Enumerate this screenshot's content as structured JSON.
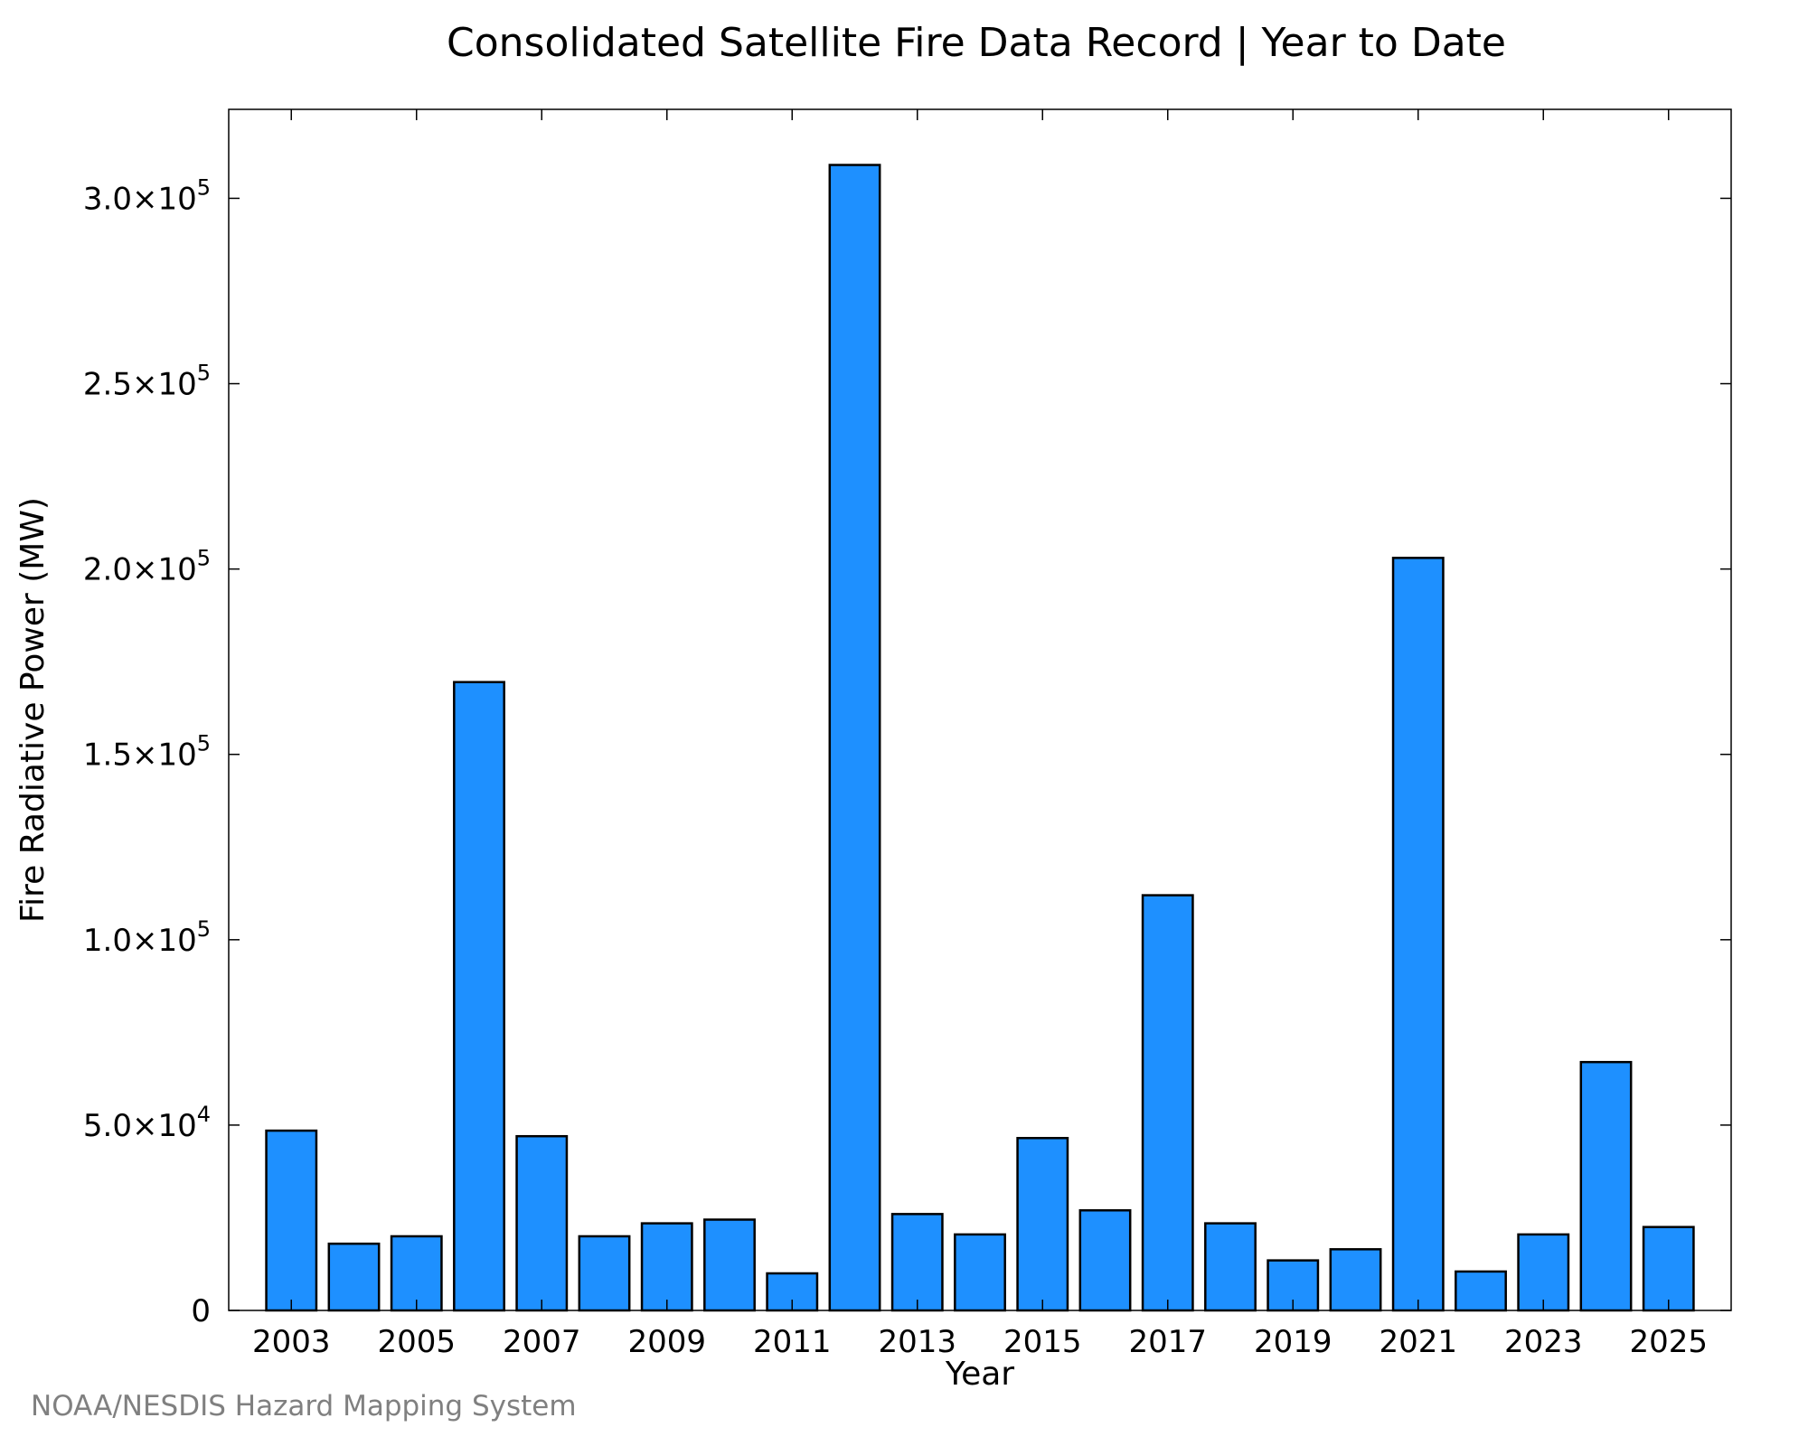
{
  "chart_data": {
    "type": "bar",
    "title": "Consolidated Satellite Fire Data Record | Year to Date",
    "xlabel": "Year",
    "ylabel": "Fire Radiative Power (MW)",
    "ylim": [
      0,
      324000
    ],
    "xlim": [
      2002,
      2026
    ],
    "grid": false,
    "categories": [
      2003,
      2004,
      2005,
      2006,
      2007,
      2008,
      2009,
      2010,
      2011,
      2012,
      2013,
      2014,
      2015,
      2016,
      2017,
      2018,
      2019,
      2020,
      2021,
      2022,
      2023,
      2024,
      2025
    ],
    "values": [
      48500,
      18000,
      20000,
      169500,
      47000,
      20000,
      23500,
      24500,
      10000,
      309000,
      26000,
      20500,
      46500,
      27000,
      112000,
      23500,
      13500,
      16500,
      203000,
      10500,
      20500,
      67000,
      22500
    ],
    "x_ticks": [
      2003,
      2005,
      2007,
      2009,
      2011,
      2013,
      2015,
      2017,
      2019,
      2021,
      2023,
      2025
    ],
    "x_tick_labels": [
      "2003",
      "2005",
      "2007",
      "2009",
      "2011",
      "2013",
      "2015",
      "2017",
      "2019",
      "2021",
      "2023",
      "2025"
    ],
    "y_ticks": [
      0,
      50000,
      100000,
      150000,
      200000,
      250000,
      300000
    ],
    "y_tick_labels": [
      {
        "text": "0",
        "mantissa": "",
        "exponent": ""
      },
      {
        "text": "",
        "mantissa": "5.0×10",
        "exponent": "4"
      },
      {
        "text": "",
        "mantissa": "1.0×10",
        "exponent": "5"
      },
      {
        "text": "",
        "mantissa": "1.5×10",
        "exponent": "5"
      },
      {
        "text": "",
        "mantissa": "2.0×10",
        "exponent": "5"
      },
      {
        "text": "",
        "mantissa": "2.5×10",
        "exponent": "5"
      },
      {
        "text": "",
        "mantissa": "3.0×10",
        "exponent": "5"
      }
    ],
    "bar_color": "#1e90ff",
    "bar_edge_color": "#000000"
  },
  "source_note": "NOAA/NESDIS Hazard Mapping System"
}
